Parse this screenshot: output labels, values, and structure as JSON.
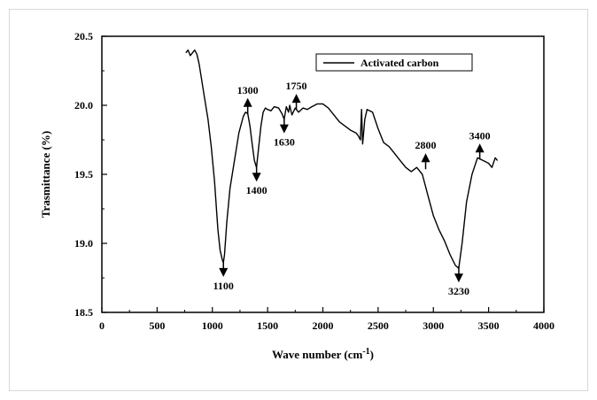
{
  "chart_data": {
    "type": "line",
    "xlabel": "Wave number (cm",
    "xlabel_superscript": "-1",
    "xlabel_suffix": ")",
    "ylabel": "Trasmittance (%)",
    "xlim": [
      0,
      4000
    ],
    "ylim": [
      18.5,
      20.5
    ],
    "x_ticks": [
      0,
      500,
      1000,
      1500,
      2000,
      2500,
      3000,
      3500,
      4000
    ],
    "y_ticks": [
      "18.5",
      "19.0",
      "19.5",
      "20.0",
      "20.5"
    ],
    "grid": false,
    "legend_position": "top-right",
    "series": [
      {
        "name": "Activated carbon",
        "color": "#000000",
        "x": [
          760,
          780,
          800,
          820,
          840,
          860,
          880,
          900,
          930,
          960,
          990,
          1020,
          1050,
          1070,
          1090,
          1100,
          1110,
          1130,
          1160,
          1200,
          1240,
          1280,
          1300,
          1320,
          1340,
          1360,
          1380,
          1400,
          1420,
          1440,
          1460,
          1480,
          1500,
          1530,
          1560,
          1600,
          1630,
          1650,
          1670,
          1690,
          1700,
          1720,
          1750,
          1780,
          1820,
          1860,
          1900,
          1950,
          2000,
          2050,
          2100,
          2150,
          2200,
          2250,
          2300,
          2320,
          2340,
          2350,
          2360,
          2380,
          2400,
          2450,
          2500,
          2550,
          2600,
          2650,
          2700,
          2750,
          2800,
          2850,
          2900,
          2950,
          3000,
          3050,
          3100,
          3150,
          3200,
          3230,
          3260,
          3300,
          3350,
          3400,
          3450,
          3500,
          3530,
          3560,
          3580
        ],
        "y": [
          20.38,
          20.4,
          20.36,
          20.38,
          20.4,
          20.37,
          20.3,
          20.2,
          20.05,
          19.9,
          19.7,
          19.45,
          19.1,
          18.95,
          18.88,
          18.86,
          18.92,
          19.15,
          19.4,
          19.6,
          19.8,
          19.92,
          19.95,
          19.94,
          19.85,
          19.72,
          19.6,
          19.55,
          19.7,
          19.85,
          19.95,
          19.98,
          19.97,
          19.96,
          19.99,
          19.98,
          19.94,
          19.9,
          19.99,
          19.95,
          20.0,
          19.93,
          19.98,
          19.95,
          19.98,
          19.97,
          19.99,
          20.01,
          20.01,
          19.98,
          19.93,
          19.88,
          19.85,
          19.82,
          19.8,
          19.78,
          19.75,
          19.97,
          19.72,
          19.9,
          19.97,
          19.95,
          19.83,
          19.73,
          19.7,
          19.65,
          19.6,
          19.55,
          19.52,
          19.55,
          19.5,
          19.35,
          19.2,
          19.1,
          19.02,
          18.92,
          18.84,
          18.82,
          19.0,
          19.3,
          19.5,
          19.62,
          19.6,
          19.58,
          19.55,
          19.62,
          19.6
        ]
      }
    ],
    "annotations": [
      {
        "label": "1100",
        "x": 1100,
        "y": 18.86,
        "dir": "down"
      },
      {
        "label": "1300",
        "x": 1320,
        "y": 19.95,
        "dir": "up"
      },
      {
        "label": "1400",
        "x": 1400,
        "y": 19.55,
        "dir": "down"
      },
      {
        "label": "1630",
        "x": 1650,
        "y": 19.9,
        "dir": "down"
      },
      {
        "label": "1750",
        "x": 1760,
        "y": 19.98,
        "dir": "up"
      },
      {
        "label": "2800",
        "x": 2930,
        "y": 19.55,
        "dir": "up"
      },
      {
        "label": "3230",
        "x": 3230,
        "y": 18.82,
        "dir": "down"
      },
      {
        "label": "3400",
        "x": 3420,
        "y": 19.62,
        "dir": "up"
      }
    ]
  }
}
